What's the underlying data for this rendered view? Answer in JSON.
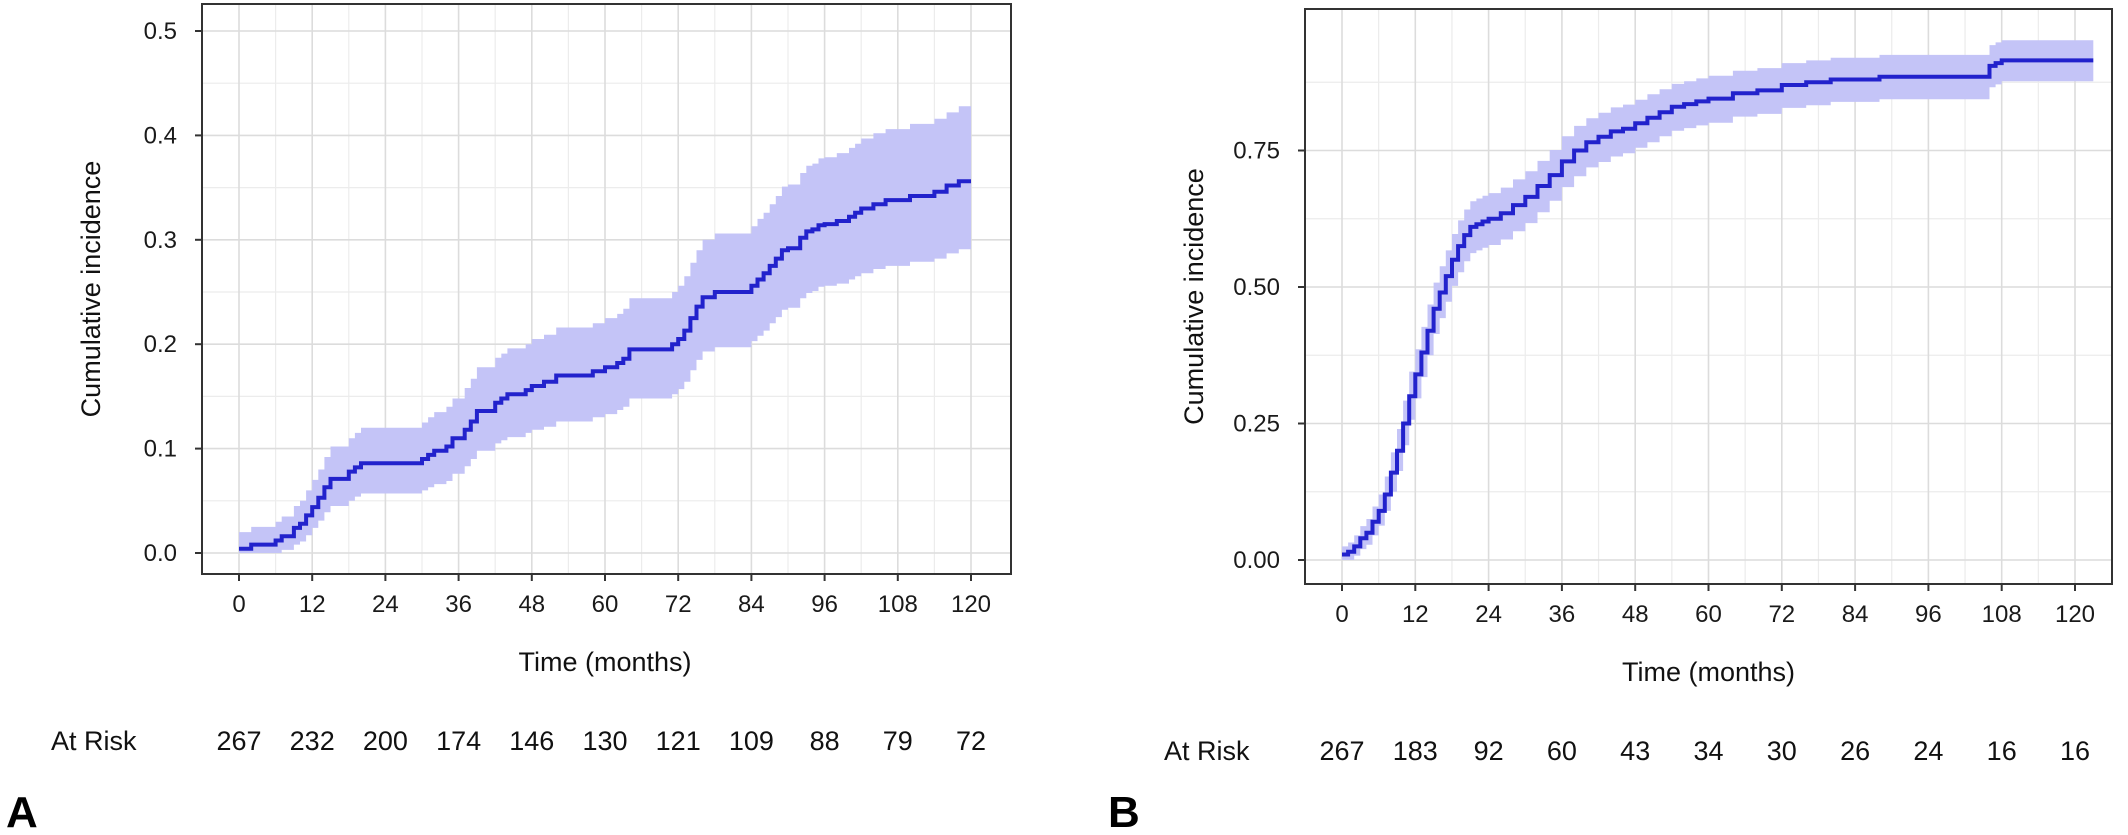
{
  "colors": {
    "line": "#2222cc",
    "band": "#c4c4f7"
  },
  "chart_data": [
    {
      "type": "line",
      "panel_label": "A",
      "xlabel": "Time (months)",
      "ylabel": "Cumulative incidence",
      "xlim": [
        0,
        120
      ],
      "ylim": [
        0,
        0.5
      ],
      "x_ticks": [
        0,
        12,
        24,
        36,
        48,
        60,
        72,
        84,
        96,
        108,
        120
      ],
      "y_ticks": [
        0.0,
        0.1,
        0.2,
        0.3,
        0.4,
        0.5
      ],
      "y_tick_labels": [
        "0.0",
        "0.1",
        "0.2",
        "0.3",
        "0.4",
        "0.5"
      ],
      "grid": true,
      "risk_table": {
        "label": "At Risk",
        "values": [
          "267",
          "232",
          "200",
          "174",
          "146",
          "130",
          "121",
          "109",
          "88",
          "79",
          "72"
        ]
      },
      "series": [
        {
          "x": [
            0,
            2,
            3,
            4,
            6,
            7,
            8,
            9,
            10,
            11,
            12,
            13,
            14,
            15,
            16,
            18,
            19,
            20,
            21,
            22,
            30,
            31,
            32,
            34,
            35,
            36,
            37,
            38,
            39,
            40,
            41,
            42,
            43,
            44,
            46,
            47,
            48,
            50,
            52,
            54,
            56,
            58,
            60,
            61,
            62,
            63,
            64,
            66,
            68,
            70,
            71,
            72,
            73,
            74,
            75,
            76,
            78,
            80,
            82,
            84,
            85,
            86,
            87,
            88,
            89,
            90,
            91,
            92,
            93,
            94,
            95,
            96,
            98,
            100,
            101,
            102,
            104,
            106,
            108,
            110,
            112,
            114,
            116,
            118,
            120
          ],
          "y": [
            0.004,
            0.008,
            0.008,
            0.008,
            0.012,
            0.016,
            0.016,
            0.024,
            0.028,
            0.036,
            0.044,
            0.053,
            0.063,
            0.071,
            0.071,
            0.078,
            0.082,
            0.086,
            0.086,
            0.086,
            0.09,
            0.094,
            0.098,
            0.102,
            0.11,
            0.11,
            0.118,
            0.126,
            0.136,
            0.136,
            0.136,
            0.144,
            0.148,
            0.152,
            0.152,
            0.156,
            0.16,
            0.164,
            0.17,
            0.17,
            0.17,
            0.174,
            0.178,
            0.178,
            0.182,
            0.186,
            0.195,
            0.195,
            0.195,
            0.195,
            0.2,
            0.205,
            0.213,
            0.225,
            0.236,
            0.245,
            0.25,
            0.25,
            0.25,
            0.256,
            0.262,
            0.268,
            0.275,
            0.282,
            0.29,
            0.292,
            0.292,
            0.302,
            0.308,
            0.31,
            0.314,
            0.315,
            0.318,
            0.322,
            0.326,
            0.33,
            0.334,
            0.338,
            0.338,
            0.342,
            0.342,
            0.346,
            0.352,
            0.356,
            0.356
          ],
          "ci_lower": [
            0.0,
            0.0,
            0.0,
            0.0,
            0.0,
            0.003,
            0.003,
            0.008,
            0.011,
            0.017,
            0.024,
            0.031,
            0.039,
            0.045,
            0.045,
            0.05,
            0.054,
            0.057,
            0.057,
            0.057,
            0.06,
            0.063,
            0.066,
            0.069,
            0.076,
            0.076,
            0.083,
            0.09,
            0.098,
            0.098,
            0.098,
            0.105,
            0.108,
            0.111,
            0.111,
            0.115,
            0.118,
            0.121,
            0.126,
            0.126,
            0.126,
            0.13,
            0.133,
            0.133,
            0.137,
            0.14,
            0.148,
            0.148,
            0.148,
            0.148,
            0.152,
            0.157,
            0.164,
            0.175,
            0.185,
            0.193,
            0.197,
            0.197,
            0.197,
            0.203,
            0.208,
            0.213,
            0.22,
            0.226,
            0.233,
            0.235,
            0.235,
            0.244,
            0.249,
            0.251,
            0.255,
            0.256,
            0.258,
            0.262,
            0.265,
            0.268,
            0.272,
            0.275,
            0.275,
            0.279,
            0.279,
            0.282,
            0.287,
            0.291,
            0.291
          ],
          "ci_upper": [
            0.02,
            0.025,
            0.025,
            0.025,
            0.03,
            0.035,
            0.035,
            0.045,
            0.05,
            0.06,
            0.07,
            0.08,
            0.092,
            0.102,
            0.102,
            0.11,
            0.115,
            0.12,
            0.12,
            0.12,
            0.125,
            0.13,
            0.135,
            0.14,
            0.148,
            0.148,
            0.158,
            0.167,
            0.178,
            0.178,
            0.178,
            0.187,
            0.191,
            0.196,
            0.196,
            0.2,
            0.205,
            0.209,
            0.216,
            0.216,
            0.216,
            0.22,
            0.225,
            0.225,
            0.229,
            0.234,
            0.244,
            0.244,
            0.244,
            0.244,
            0.25,
            0.256,
            0.265,
            0.278,
            0.29,
            0.3,
            0.306,
            0.306,
            0.306,
            0.313,
            0.32,
            0.326,
            0.334,
            0.342,
            0.351,
            0.353,
            0.353,
            0.364,
            0.371,
            0.373,
            0.378,
            0.379,
            0.383,
            0.388,
            0.392,
            0.397,
            0.402,
            0.406,
            0.406,
            0.411,
            0.411,
            0.416,
            0.422,
            0.428,
            0.428
          ]
        }
      ]
    },
    {
      "type": "line",
      "panel_label": "B",
      "xlabel": "Time (months)",
      "ylabel": "Cumulative incidence",
      "xlim": [
        0,
        120
      ],
      "ylim": [
        0,
        1.0
      ],
      "x_ticks": [
        0,
        12,
        24,
        36,
        48,
        60,
        72,
        84,
        96,
        108,
        120
      ],
      "y_ticks": [
        0.0,
        0.25,
        0.5,
        0.75
      ],
      "y_tick_labels": [
        "0.00",
        "0.25",
        "0.50",
        "0.75"
      ],
      "grid": true,
      "risk_table": {
        "label": "At Risk",
        "values": [
          "267",
          "183",
          "92",
          "60",
          "43",
          "34",
          "30",
          "26",
          "24",
          "16",
          "16"
        ]
      },
      "series": [
        {
          "x": [
            0,
            1,
            2,
            3,
            4,
            5,
            6,
            7,
            8,
            9,
            10,
            11,
            12,
            13,
            14,
            15,
            16,
            17,
            18,
            19,
            20,
            21,
            22,
            23,
            24,
            26,
            28,
            30,
            32,
            34,
            36,
            38,
            40,
            42,
            44,
            46,
            48,
            50,
            52,
            54,
            56,
            58,
            60,
            64,
            68,
            72,
            76,
            80,
            84,
            88,
            92,
            96,
            100,
            104,
            106,
            107,
            108,
            112,
            116,
            120,
            123
          ],
          "y": [
            0.01,
            0.015,
            0.025,
            0.04,
            0.05,
            0.07,
            0.09,
            0.12,
            0.16,
            0.2,
            0.25,
            0.3,
            0.34,
            0.38,
            0.42,
            0.46,
            0.49,
            0.52,
            0.55,
            0.575,
            0.595,
            0.61,
            0.615,
            0.62,
            0.625,
            0.635,
            0.65,
            0.665,
            0.685,
            0.705,
            0.73,
            0.75,
            0.765,
            0.775,
            0.785,
            0.79,
            0.8,
            0.81,
            0.82,
            0.83,
            0.835,
            0.84,
            0.845,
            0.855,
            0.86,
            0.87,
            0.875,
            0.88,
            0.88,
            0.885,
            0.885,
            0.885,
            0.885,
            0.885,
            0.905,
            0.91,
            0.915,
            0.915,
            0.915,
            0.915,
            0.915
          ],
          "ci_lower": [
            0.0,
            0.0,
            0.008,
            0.02,
            0.028,
            0.045,
            0.063,
            0.09,
            0.125,
            0.163,
            0.21,
            0.257,
            0.296,
            0.335,
            0.375,
            0.414,
            0.443,
            0.473,
            0.502,
            0.527,
            0.547,
            0.562,
            0.567,
            0.572,
            0.577,
            0.587,
            0.602,
            0.617,
            0.637,
            0.658,
            0.683,
            0.703,
            0.719,
            0.729,
            0.739,
            0.745,
            0.755,
            0.765,
            0.776,
            0.786,
            0.791,
            0.796,
            0.801,
            0.812,
            0.817,
            0.828,
            0.833,
            0.839,
            0.839,
            0.844,
            0.844,
            0.844,
            0.844,
            0.844,
            0.866,
            0.871,
            0.877,
            0.877,
            0.877,
            0.877,
            0.877
          ],
          "ci_upper": [
            0.025,
            0.032,
            0.045,
            0.062,
            0.075,
            0.098,
            0.12,
            0.153,
            0.197,
            0.24,
            0.292,
            0.345,
            0.386,
            0.427,
            0.468,
            0.508,
            0.538,
            0.567,
            0.597,
            0.622,
            0.642,
            0.657,
            0.662,
            0.667,
            0.672,
            0.682,
            0.697,
            0.712,
            0.731,
            0.751,
            0.776,
            0.795,
            0.809,
            0.819,
            0.829,
            0.834,
            0.843,
            0.853,
            0.862,
            0.872,
            0.877,
            0.882,
            0.887,
            0.896,
            0.901,
            0.91,
            0.915,
            0.92,
            0.92,
            0.925,
            0.925,
            0.925,
            0.925,
            0.925,
            0.943,
            0.948,
            0.952,
            0.952,
            0.952,
            0.952,
            0.952
          ]
        }
      ]
    }
  ]
}
